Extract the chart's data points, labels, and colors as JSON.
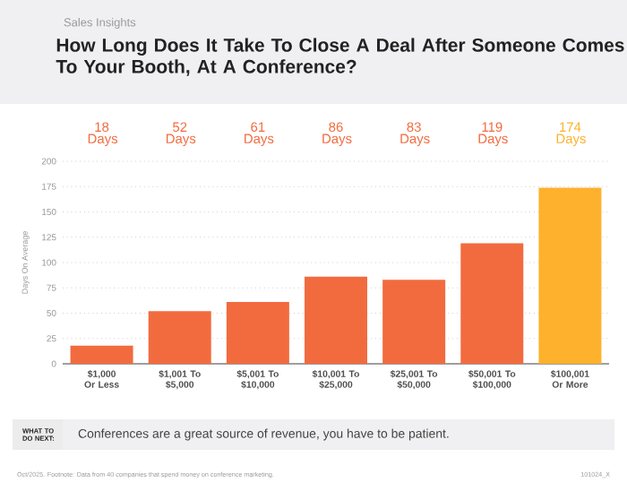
{
  "chart_data": {
    "type": "bar",
    "subtitle": "Sales Insights",
    "title": "How Long Does It Take To Close A Deal After Someone Comes To Your Booth, At A Conference?",
    "categories": [
      "$1,000 Or Less",
      "$1,001 To $5,000",
      "$5,001 To $10,000",
      "$10,001 To $25,000",
      "$25,001 To $50,000",
      "$50,001 To $100,000",
      "$100,001 Or More"
    ],
    "values": [
      18,
      52,
      61,
      86,
      83,
      119,
      174
    ],
    "value_labels": [
      "18 Days",
      "52 Days",
      "61 Days",
      "86 Days",
      "83 Days",
      "119 Days",
      "174 Days"
    ],
    "colors": [
      "#f26b3f",
      "#f26b3f",
      "#f26b3f",
      "#f26b3f",
      "#f26b3f",
      "#f26b3f",
      "#fdb12c"
    ],
    "ylabel": "Days On Average",
    "ylim": [
      0,
      200
    ],
    "yticks": [
      0,
      25,
      50,
      75,
      100,
      125,
      150,
      175,
      200
    ],
    "grid": "y",
    "annotations": [
      "WHAT TO DO NEXT:",
      "Conferences are a great source of revenue, you have to be patient.",
      "Oct/2025. Footnote: Data from 40 companies that spend money on conference marketing.",
      "101024_X"
    ]
  }
}
